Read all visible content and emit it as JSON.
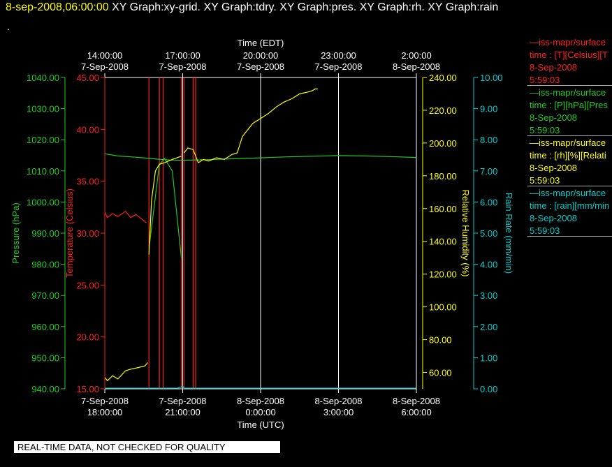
{
  "header": {
    "timestamp": "8-sep-2008,06:00:00",
    "titles": [
      "XY Graph:xy-grid.",
      "XY Graph:tdry.",
      "XY Graph:pres.",
      "XY Graph:rh.",
      "XY Graph:rain"
    ],
    "dot": "."
  },
  "disclaimer": "REAL-TIME DATA, NOT CHECKED FOR QUALITY",
  "legend": [
    {
      "lines": [
        "—iss-mapr/surface",
        "time : [T][Celsius][T",
        "8-Sep-2008",
        "5:59:03"
      ],
      "color": "#ff2020"
    },
    {
      "lines": [
        "—iss-mapr/surface",
        "time : [P][hPa][Pres",
        "8-Sep-2008",
        "5:59:03"
      ],
      "color": "#22cc22"
    },
    {
      "lines": [
        "—iss-mapr/surface",
        "time : [rh][%][Relati",
        "8-Sep-2008",
        "5:59:03"
      ],
      "color": "#ffff00"
    },
    {
      "lines": [
        "—iss-mapr/surface",
        "time : [rain][mm/min",
        "8-Sep-2008",
        "5:59:03"
      ],
      "color": "#00d0d0"
    }
  ],
  "colors": {
    "temperature": "#ff2020",
    "pressure": "#22cc22",
    "humidity": "#ffff00",
    "rain": "#00d0d0",
    "grid": "#ffffff"
  },
  "chart_data": {
    "type": "line",
    "x_top_label": "Time (EDT)",
    "x_bottom_label": "Time (UTC)",
    "x_range_hours": [
      0,
      12
    ],
    "x_ticks": [
      {
        "h": 0,
        "bottom": [
          "7-Sep-2008",
          "18:00:00"
        ],
        "top": [
          "14:00:00",
          "7-Sep-2008"
        ]
      },
      {
        "h": 3,
        "bottom": [
          "7-Sep-2008",
          "21:00:00"
        ],
        "top": [
          "17:00:00",
          "7-Sep-2008"
        ]
      },
      {
        "h": 6,
        "bottom": [
          "8-Sep-2008",
          "0:00:00"
        ],
        "top": [
          "20:00:00",
          "7-Sep-2008"
        ]
      },
      {
        "h": 9,
        "bottom": [
          "8-Sep-2008",
          "3:00:00"
        ],
        "top": [
          "23:00:00",
          "7-Sep-2008"
        ]
      },
      {
        "h": 12,
        "bottom": [
          "8-Sep-2008",
          "6:00:00"
        ],
        "top": [
          "2:00:00",
          "8-Sep-2008"
        ]
      }
    ],
    "axes": {
      "pressure": {
        "label": "Pressure (hPa)",
        "range": [
          940,
          1040
        ],
        "ticks": [
          "940.00",
          "950.00",
          "960.00",
          "970.00",
          "980.00",
          "990.00",
          "1000.00",
          "1010.00",
          "1020.00",
          "1030.00",
          "1040.00"
        ]
      },
      "temperature": {
        "label": "Temperature (Celsius)",
        "range": [
          15,
          45
        ],
        "ticks": [
          "15.00",
          "20.00",
          "25.00",
          "30.00",
          "35.00",
          "40.00",
          "45.00"
        ]
      },
      "humidity": {
        "label": "Relative Humidity (%)",
        "range": [
          50,
          240
        ],
        "ticks": [
          "60.00",
          "80.00",
          "100.00",
          "120.00",
          "140.00",
          "160.00",
          "180.00",
          "200.00",
          "220.00",
          "240.00"
        ]
      },
      "rain": {
        "label": "Rain Rate (mm/min)",
        "range": [
          0,
          10
        ],
        "ticks": [
          "0.00",
          "1.00",
          "2.00",
          "3.00",
          "4.00",
          "5.00",
          "6.00",
          "7.00",
          "8.00",
          "9.00",
          "10.00"
        ]
      }
    },
    "missing_data_hours": [
      1.7,
      2.1,
      2.25,
      2.95,
      3.05,
      3.4,
      3.5
    ],
    "series": [
      {
        "key": "temperature",
        "axis": "temperature",
        "x": [
          0,
          0.1,
          0.3,
          0.5,
          0.8,
          1.0,
          1.2,
          1.45,
          1.6
        ],
        "y": [
          32.0,
          31.5,
          31.9,
          31.6,
          32.1,
          31.5,
          31.8,
          31.3,
          31.0
        ]
      },
      {
        "key": "pressure",
        "axis": "pressure",
        "x": [
          0,
          0.5,
          1.0,
          1.5,
          2.0,
          2.5,
          3.0,
          3.5,
          4.0,
          5.0,
          6.0,
          7.0,
          8.0,
          9.0,
          10.0,
          11.0,
          12.0
        ],
        "y": [
          1015.5,
          1014.8,
          1014.5,
          1014.2,
          1013.8,
          1013.5,
          1013.4,
          1013.5,
          1013.6,
          1013.9,
          1014.2,
          1014.5,
          1014.7,
          1014.9,
          1014.8,
          1014.6,
          1014.3
        ]
      },
      {
        "key": "pressure",
        "axis": "pressure",
        "x": [
          1.7,
          2.1,
          2.3,
          2.6,
          2.95
        ],
        "y": [
          985,
          1012,
          1014,
          1010,
          982
        ]
      },
      {
        "key": "humidity",
        "axis": "humidity",
        "x": [
          0,
          0.1,
          0.3,
          0.5,
          0.8,
          1.0,
          1.3,
          1.55,
          1.65
        ],
        "y": [
          57,
          55,
          58,
          56,
          61,
          62,
          63,
          64,
          66
        ]
      },
      {
        "key": "humidity",
        "axis": "humidity",
        "x": [
          1.7,
          1.8,
          1.95,
          2.1,
          2.3,
          2.6,
          2.95
        ],
        "y": [
          132,
          165,
          183,
          187,
          188,
          190,
          192
        ]
      },
      {
        "key": "humidity",
        "axis": "humidity",
        "x": [
          3.05,
          3.2,
          3.4,
          3.6,
          3.8,
          4.0,
          4.3,
          4.6,
          4.9,
          5.1,
          5.3,
          5.5,
          5.7,
          6.0,
          6.3,
          6.6,
          6.9,
          7.2,
          7.5,
          7.8,
          8.0,
          8.1,
          8.2
        ],
        "y": [
          194,
          197,
          196,
          188,
          190,
          189,
          191,
          190,
          193,
          194,
          204,
          208,
          212,
          215,
          218,
          222,
          225,
          227,
          230,
          231,
          232,
          233,
          233
        ]
      },
      {
        "key": "rain",
        "axis": "rain",
        "x": [
          0,
          1,
          2,
          2.8,
          3.0,
          3.05,
          3.2,
          4,
          6,
          8,
          10,
          12
        ],
        "y": [
          0.02,
          0.02,
          0.02,
          0.02,
          0.08,
          0.02,
          0.02,
          0.02,
          0.02,
          0.02,
          0.02,
          0.02
        ]
      }
    ]
  }
}
